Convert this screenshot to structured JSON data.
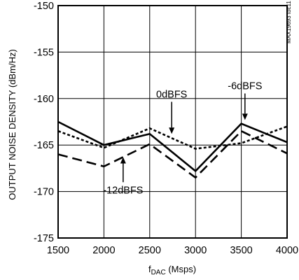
{
  "chart_data": {
    "type": "line",
    "ylabel": "OUTPUT NOISE DENSITY (dBm/Hz)",
    "xlabel_main": "f",
    "xlabel_sub": "DAC",
    "xlabel_rest": " (Msps)",
    "chart_code": "MAX19693 toc11",
    "x": [
      1500,
      2000,
      2500,
      3000,
      3500,
      4000
    ],
    "xlim": [
      1500,
      4000
    ],
    "ylim": [
      -175,
      -150
    ],
    "x_ticks": [
      1500,
      2000,
      2500,
      3000,
      3500,
      4000
    ],
    "y_ticks": [
      -150,
      -155,
      -160,
      -165,
      -170,
      -175
    ],
    "y_tick_labels": [
      "-150",
      "-155",
      "-160",
      "-165",
      "-170",
      "-175"
    ],
    "grid": true,
    "series": [
      {
        "name": "0dBFS",
        "style": "dotted",
        "values": [
          -163.5,
          -165.3,
          -163.2,
          -165.4,
          -164.8,
          -163.0
        ]
      },
      {
        "name": "-6dBFS",
        "style": "solid",
        "values": [
          -162.5,
          -165.0,
          -163.8,
          -167.8,
          -162.7,
          -164.7
        ]
      },
      {
        "name": "-12dBFS",
        "style": "dashed",
        "values": [
          -166.0,
          -167.3,
          -164.9,
          -168.5,
          -163.5,
          -165.9
        ]
      }
    ],
    "annotations": [
      {
        "text": "0dBFS",
        "x": 2740,
        "y": -159.9,
        "arrow_to": [
          2740,
          -163.8
        ]
      },
      {
        "text": "-6dBFS",
        "x": 3540,
        "y": -159.0,
        "arrow_to": [
          3540,
          -162.3
        ]
      },
      {
        "text": "-12dBFS",
        "x": 2210,
        "y": -170.2,
        "arrow_to": [
          2210,
          -166.3
        ]
      }
    ]
  }
}
